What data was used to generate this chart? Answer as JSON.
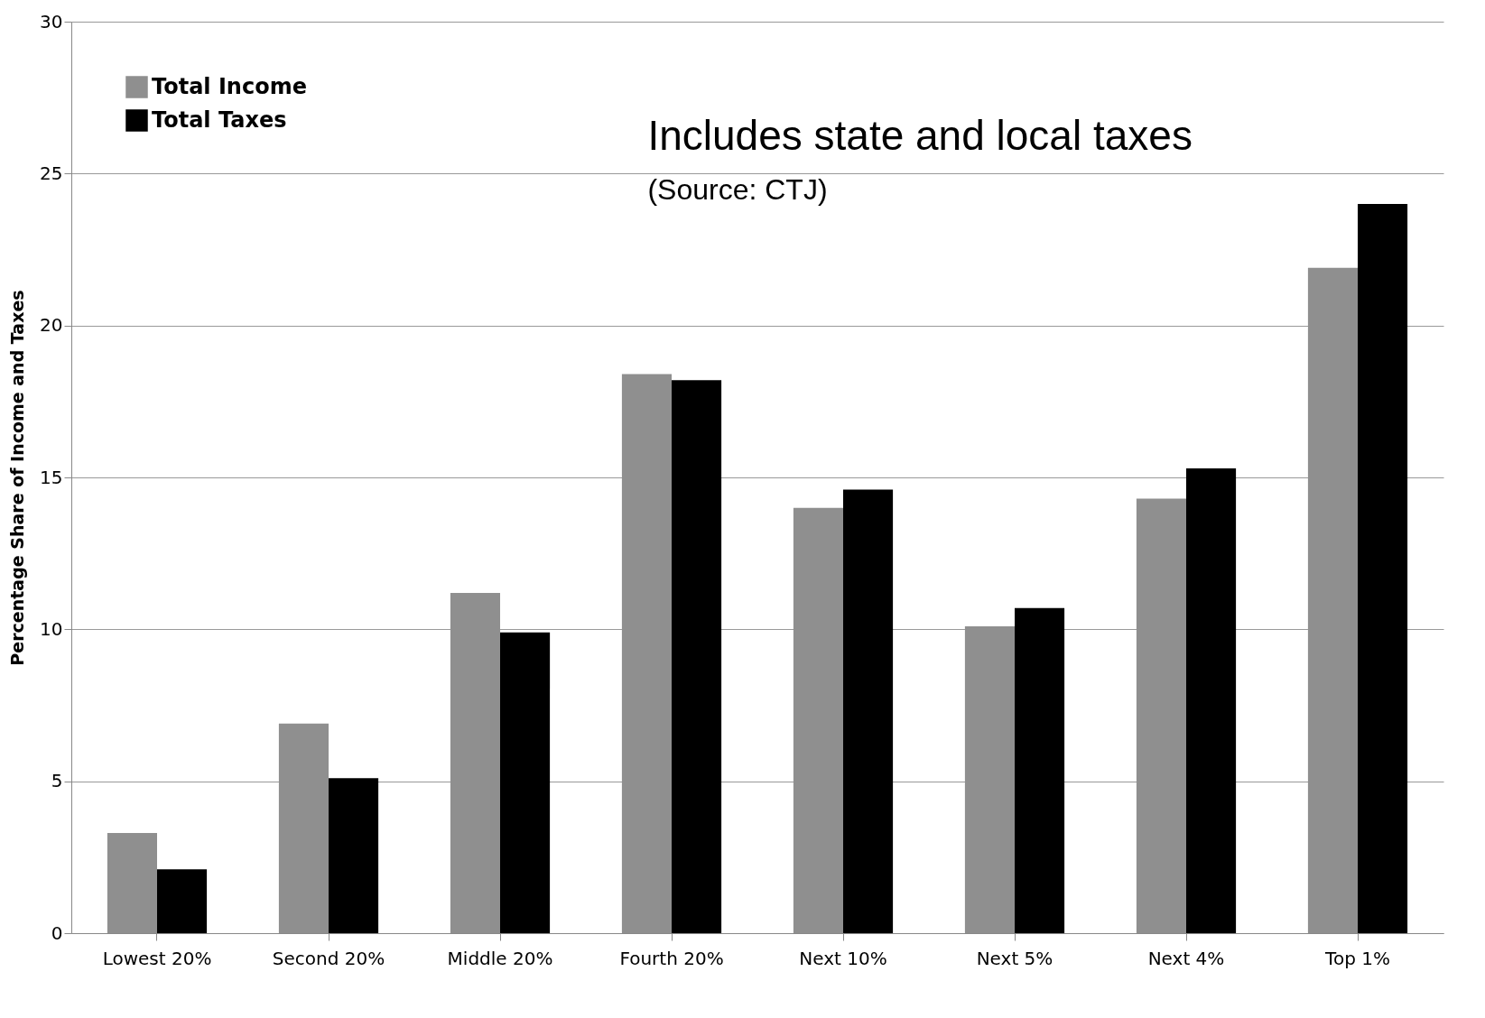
{
  "chart_data": {
    "type": "bar",
    "ylabel": "Percentage Share of Income and Taxes",
    "categories": [
      "Lowest 20%",
      "Second 20%",
      "Middle 20%",
      "Fourth 20%",
      "Next 10%",
      "Next 5%",
      "Next 4%",
      "Top 1%"
    ],
    "series": [
      {
        "name": "Total Income",
        "color": "#8f8f8f",
        "values": [
          3.3,
          6.9,
          11.2,
          18.4,
          14.0,
          10.1,
          14.3,
          21.9
        ]
      },
      {
        "name": "Total Taxes",
        "color": "#000000",
        "values": [
          2.1,
          5.1,
          9.9,
          18.2,
          14.6,
          10.7,
          15.3,
          24.0
        ]
      }
    ],
    "ylim": [
      0,
      30
    ],
    "yticks": [
      0,
      5,
      10,
      15,
      20,
      25,
      30
    ],
    "grid": "y",
    "legend": "top left",
    "annotations": [
      "Includes state and local taxes",
      "(Source: CTJ)"
    ]
  }
}
